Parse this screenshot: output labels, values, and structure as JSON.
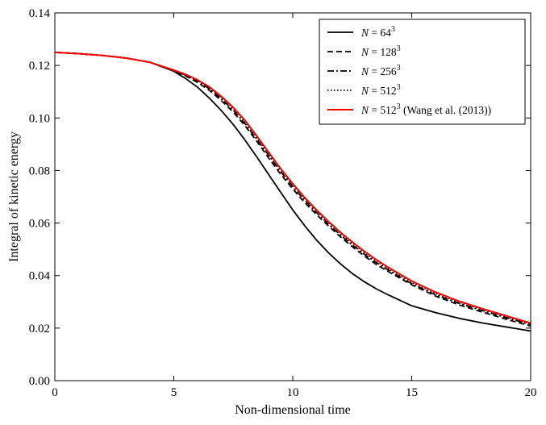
{
  "chart_data": {
    "type": "line",
    "xlabel": "Non-dimensional time",
    "ylabel": "Integral of kinetic energy",
    "xlim": [
      0,
      20
    ],
    "ylim": [
      0.0,
      0.14
    ],
    "xticks": [
      "0",
      "5",
      "10",
      "15",
      "20"
    ],
    "yticks": [
      "0.00",
      "0.02",
      "0.04",
      "0.06",
      "0.08",
      "0.10",
      "0.12",
      "0.14"
    ],
    "grid": false,
    "legend_position": "top-right",
    "series": [
      {
        "name": "N = 64^3",
        "legend": {
          "pre": "N",
          "eq": " = 64",
          "sup": "3",
          "post": ""
        },
        "color": "#000000",
        "style": "solid",
        "x": [
          0,
          1,
          2,
          3,
          4,
          5,
          5.5,
          6,
          6.5,
          7,
          7.5,
          8,
          8.5,
          9,
          9.5,
          10,
          10.5,
          11,
          11.5,
          12,
          12.5,
          13,
          13.5,
          14,
          15,
          16,
          17,
          18,
          19,
          20
        ],
        "y": [
          0.125,
          0.1245,
          0.1238,
          0.1228,
          0.1212,
          0.1178,
          0.115,
          0.1117,
          0.1075,
          0.1028,
          0.0975,
          0.0915,
          0.085,
          0.0783,
          0.0716,
          0.065,
          0.059,
          0.0535,
          0.0487,
          0.0445,
          0.0408,
          0.0377,
          0.035,
          0.0327,
          0.0285,
          0.0259,
          0.0237,
          0.0219,
          0.0204,
          0.0189
        ]
      },
      {
        "name": "N = 128^3",
        "legend": {
          "pre": "N",
          "eq": " = 128",
          "sup": "3",
          "post": ""
        },
        "color": "#000000",
        "style": "dashed",
        "x": [
          0,
          1,
          2,
          3,
          4,
          5,
          5.5,
          6,
          6.5,
          7,
          7.5,
          8,
          8.5,
          9,
          9.5,
          10,
          10.5,
          11,
          11.5,
          12,
          12.5,
          13,
          13.5,
          14,
          15,
          16,
          17,
          18,
          19,
          20
        ],
        "y": [
          0.125,
          0.1245,
          0.1238,
          0.1228,
          0.1212,
          0.118,
          0.116,
          0.1135,
          0.1105,
          0.1066,
          0.1022,
          0.097,
          0.091,
          0.0846,
          0.0785,
          0.073,
          0.0678,
          0.0632,
          0.0589,
          0.0548,
          0.051,
          0.0475,
          0.0443,
          0.0416,
          0.0365,
          0.0322,
          0.0288,
          0.026,
          0.0233,
          0.0208
        ]
      },
      {
        "name": "N = 256^3",
        "legend": {
          "pre": "N",
          "eq": " = 256",
          "sup": "3",
          "post": ""
        },
        "color": "#000000",
        "style": "dashdot",
        "x": [
          0,
          1,
          2,
          3,
          4,
          5,
          5.5,
          6,
          6.5,
          7,
          7.5,
          8,
          8.5,
          9,
          9.5,
          10,
          10.5,
          11,
          11.5,
          12,
          12.5,
          13,
          13.5,
          14,
          15,
          16,
          17,
          18,
          19,
          20
        ],
        "y": [
          0.125,
          0.1245,
          0.1238,
          0.1228,
          0.1212,
          0.1181,
          0.1163,
          0.114,
          0.1111,
          0.1073,
          0.103,
          0.0978,
          0.0918,
          0.0856,
          0.0795,
          0.0739,
          0.0687,
          0.064,
          0.0596,
          0.0555,
          0.0517,
          0.0482,
          0.045,
          0.0422,
          0.0369,
          0.0327,
          0.0294,
          0.0266,
          0.0239,
          0.0214
        ]
      },
      {
        "name": "N = 512^3",
        "legend": {
          "pre": "N",
          "eq": " = 512",
          "sup": "3",
          "post": ""
        },
        "color": "#000000",
        "style": "dotted",
        "x": [
          0,
          1,
          2,
          3,
          4,
          5,
          5.5,
          6,
          6.5,
          7,
          7.5,
          8,
          8.5,
          9,
          9.5,
          10,
          10.5,
          11,
          11.5,
          12,
          12.5,
          13,
          13.5,
          14,
          15,
          16,
          17,
          18,
          19,
          20
        ],
        "y": [
          0.125,
          0.1245,
          0.1238,
          0.1228,
          0.1212,
          0.1182,
          0.1165,
          0.1143,
          0.1115,
          0.1078,
          0.1036,
          0.0985,
          0.0925,
          0.0862,
          0.0802,
          0.0745,
          0.0693,
          0.0646,
          0.0602,
          0.0561,
          0.0523,
          0.0488,
          0.0456,
          0.0427,
          0.0374,
          0.0332,
          0.0298,
          0.027,
          0.0243,
          0.0217
        ]
      },
      {
        "name": "N = 512^3 (Wang et al. (2013))",
        "legend": {
          "pre": "N",
          "eq": " = 512",
          "sup": "3",
          "post": " (Wang et al. (2013))"
        },
        "color": "#ff0000",
        "style": "solid",
        "x": [
          0,
          1,
          2,
          3,
          4,
          5,
          5.5,
          6,
          6.5,
          7,
          7.5,
          8,
          8.5,
          9,
          9.5,
          10,
          10.5,
          11,
          11.5,
          12,
          12.5,
          13,
          13.5,
          14,
          15,
          16,
          17,
          18,
          19,
          20
        ],
        "y": [
          0.125,
          0.1245,
          0.1238,
          0.1228,
          0.1212,
          0.1182,
          0.1166,
          0.1145,
          0.1118,
          0.1082,
          0.104,
          0.099,
          0.093,
          0.0868,
          0.0806,
          0.075,
          0.0697,
          0.065,
          0.0606,
          0.0565,
          0.0528,
          0.0493,
          0.0461,
          0.0432,
          0.0379,
          0.0337,
          0.0302,
          0.0273,
          0.0246,
          0.0219
        ]
      }
    ]
  }
}
